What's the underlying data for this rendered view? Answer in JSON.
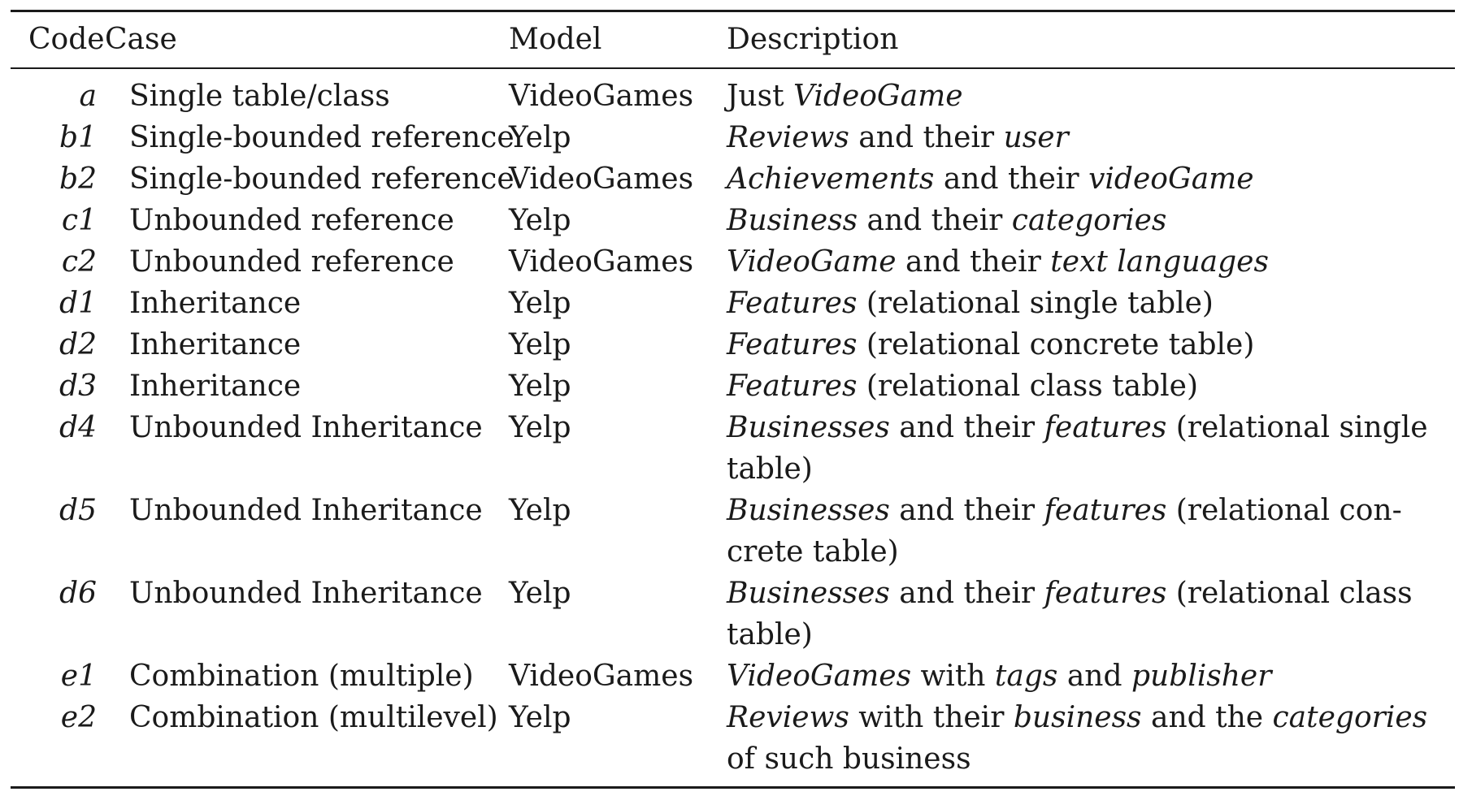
{
  "table": {
    "headers": [
      "Code",
      "Case",
      "Model",
      "Description"
    ],
    "rows": [
      {
        "code": "a",
        "case": "Single table/class",
        "model": "VideoGames",
        "description": [
          {
            "t": "Just ",
            "i": false
          },
          {
            "t": "VideoGame",
            "i": true
          }
        ]
      },
      {
        "code": "b1",
        "case": "Single-bounded reference",
        "model": "Yelp",
        "description": [
          {
            "t": "Reviews",
            "i": true
          },
          {
            "t": " and their ",
            "i": false
          },
          {
            "t": "user",
            "i": true
          }
        ]
      },
      {
        "code": "b2",
        "case": "Single-bounded reference",
        "model": "VideoGames",
        "description": [
          {
            "t": "Achievements",
            "i": true
          },
          {
            "t": " and their ",
            "i": false
          },
          {
            "t": "videoGame",
            "i": true
          }
        ]
      },
      {
        "code": "c1",
        "case": "Unbounded reference",
        "model": "Yelp",
        "description": [
          {
            "t": "Business",
            "i": true
          },
          {
            "t": " and their ",
            "i": false
          },
          {
            "t": "categories",
            "i": true
          }
        ]
      },
      {
        "code": "c2",
        "case": "Unbounded reference",
        "model": "VideoGames",
        "description": [
          {
            "t": "VideoGame",
            "i": true
          },
          {
            "t": " and their ",
            "i": false
          },
          {
            "t": "text languages",
            "i": true
          }
        ]
      },
      {
        "code": "d1",
        "case": "Inheritance",
        "model": "Yelp",
        "description": [
          {
            "t": "Features",
            "i": true
          },
          {
            "t": " (relational single table)",
            "i": false
          }
        ]
      },
      {
        "code": "d2",
        "case": "Inheritance",
        "model": "Yelp",
        "description": [
          {
            "t": "Features",
            "i": true
          },
          {
            "t": " (relational concrete table)",
            "i": false
          }
        ]
      },
      {
        "code": "d3",
        "case": "Inheritance",
        "model": "Yelp",
        "description": [
          {
            "t": "Features",
            "i": true
          },
          {
            "t": " (relational class table)",
            "i": false
          }
        ]
      },
      {
        "code": "d4",
        "case": "Unbounded Inheritance",
        "model": "Yelp",
        "description": [
          {
            "t": "Businesses",
            "i": true
          },
          {
            "t": " and their ",
            "i": false
          },
          {
            "t": "features",
            "i": true
          },
          {
            "t": " (relational single table)",
            "i": false
          }
        ]
      },
      {
        "code": "d5",
        "case": "Unbounded Inheritance",
        "model": "Yelp",
        "description": [
          {
            "t": "Businesses",
            "i": true
          },
          {
            "t": " and their ",
            "i": false
          },
          {
            "t": "features",
            "i": true
          },
          {
            "t": " (relational con­crete table)",
            "i": false
          }
        ]
      },
      {
        "code": "d6",
        "case": "Unbounded Inheritance",
        "model": "Yelp",
        "description": [
          {
            "t": "Businesses",
            "i": true
          },
          {
            "t": " and their ",
            "i": false
          },
          {
            "t": "features",
            "i": true
          },
          {
            "t": " (relational class table)",
            "i": false
          }
        ]
      },
      {
        "code": "e1",
        "case": "Combination (multiple)",
        "model": "VideoGames",
        "description": [
          {
            "t": "VideoGames",
            "i": true
          },
          {
            "t": " with ",
            "i": false
          },
          {
            "t": "tags",
            "i": true
          },
          {
            "t": " and ",
            "i": false
          },
          {
            "t": "publisher",
            "i": true
          }
        ]
      },
      {
        "code": "e2",
        "case": "Combination (multilevel)",
        "model": "Yelp",
        "description": [
          {
            "t": "Reviews",
            "i": true
          },
          {
            "t": " with their ",
            "i": false
          },
          {
            "t": "business",
            "i": true
          },
          {
            "t": " and the ",
            "i": false
          },
          {
            "t": "categories",
            "i": true
          },
          {
            "t": " of such business",
            "i": false
          }
        ]
      }
    ]
  }
}
